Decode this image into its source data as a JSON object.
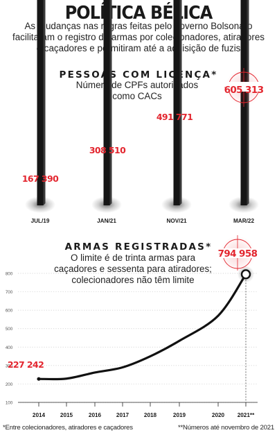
{
  "header": {
    "title": "POLÍTICA BÉLICA",
    "subtitle": "As mudanças nas regras feitas pelo governo Bolsonaro facilitaram o registro de armas por colecionadores, atiradores e caçadores e permitiram até a aquisição de fuzis"
  },
  "colors": {
    "accent": "#e3262f",
    "ink": "#1a1a1a",
    "grid": "#c9c9c9",
    "axis": "#888888"
  },
  "chart_data": [
    {
      "type": "bar",
      "title": "PESSOAS COM LICENÇA*",
      "subtitle_lines": [
        "Número de CPFs autorizados",
        "como CACs"
      ],
      "categories": [
        "JUL/19",
        "JAN/21",
        "NOV/21",
        "MAR/22"
      ],
      "values": [
        167390,
        308510,
        491771,
        605313
      ],
      "value_labels": [
        "167 390",
        "308 510",
        "491 771",
        "605 313"
      ],
      "y_ticks": [
        "700",
        "600",
        "500",
        "400",
        "300",
        "200",
        "100"
      ],
      "y_unit": "mil",
      "ylim": [
        100,
        700
      ],
      "grid": true,
      "highlight_last": true
    },
    {
      "type": "line",
      "title": "ARMAS REGISTRADAS*",
      "subtitle_lines": [
        "O limite é de trinta armas para",
        "caçadores e sessenta para atiradores;",
        "colecionadores não têm limite"
      ],
      "categories": [
        "2014",
        "2015",
        "2016",
        "2017",
        "2018",
        "2019",
        "2020",
        "2021**"
      ],
      "values": [
        227242,
        229000,
        262000,
        290000,
        350000,
        434000,
        570000,
        794958
      ],
      "value_labels": {
        "first": "227 242",
        "last": "794 958"
      },
      "y_ticks": [
        "800",
        "700",
        "600",
        "500",
        "400",
        "300",
        "200",
        "100"
      ],
      "y_unit": "mil",
      "ylim": [
        100,
        850
      ],
      "grid": true,
      "highlight_last": true
    }
  ],
  "footnotes": {
    "left": "*Entre colecionadores, atiradores e caçadores",
    "right": "**Números até novembro de 2021"
  }
}
